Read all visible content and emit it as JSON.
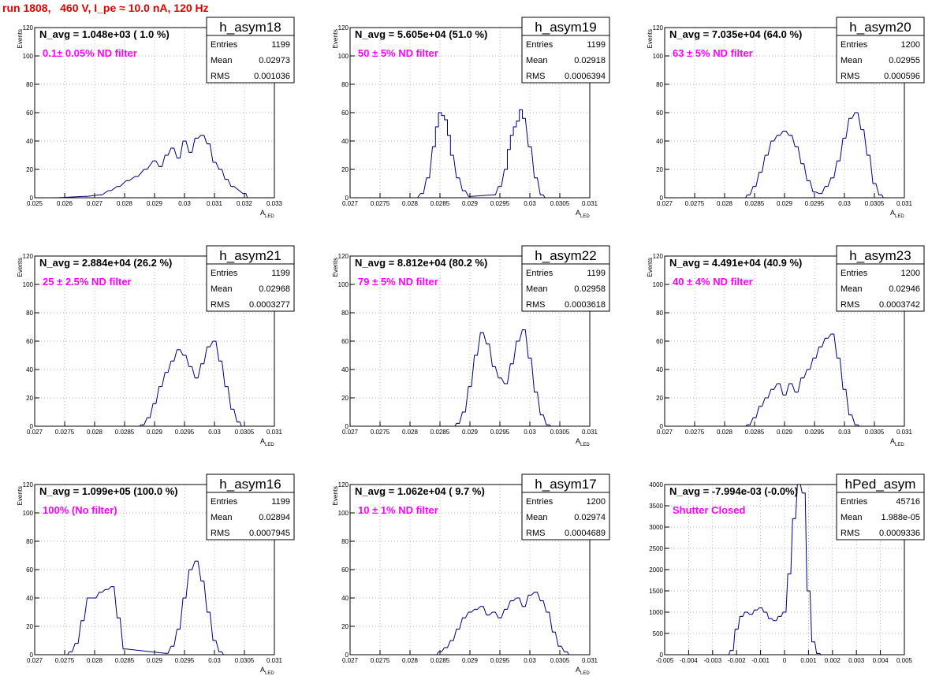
{
  "run_title": "run 1808,   460 V, I_pe ≈ 10.0 nA, 120 Hz",
  "colors": {
    "hist": "#000080",
    "title_red": "#e00000",
    "filter_text": "#ff00ff",
    "grid": "#999999"
  },
  "chart_data": [
    {
      "type": "histogram",
      "name": "h_asym18",
      "navg": "N_avg = 1.048e+03 ( 1.0 %)",
      "filter": "0.1± 0.05% ND filter",
      "stats": [
        [
          "Entries",
          "1199"
        ],
        [
          "Mean",
          "0.02973"
        ],
        [
          "RMS",
          "0.001036"
        ]
      ],
      "ylabel": "Events",
      "xlabel": "A",
      "xlabel_sub": "LED",
      "xlim": [
        0.025,
        0.033
      ],
      "ylim": [
        0,
        120
      ],
      "xticks": [
        0.025,
        0.026,
        0.027,
        0.028,
        0.029,
        0.03,
        0.031,
        0.032,
        0.033
      ],
      "xtick_labels": [
        "0.025",
        "0.026",
        "0.027",
        "0.028",
        "0.029",
        "0.03",
        "0.031",
        "0.032",
        "0.033"
      ],
      "yticks": [
        0,
        20,
        40,
        60,
        80,
        100,
        120
      ],
      "ytick_labels": [
        "0",
        "20",
        "40",
        "60",
        "80",
        "100",
        "120"
      ],
      "x": [
        0.0257,
        0.0267,
        0.0272,
        0.0275,
        0.0278,
        0.0281,
        0.0284,
        0.0287,
        0.029,
        0.0292,
        0.0294,
        0.0296,
        0.0298,
        0.03,
        0.0302,
        0.0304,
        0.0306,
        0.0308,
        0.031,
        0.0312,
        0.0314,
        0.0316,
        0.032
      ],
      "values": [
        0,
        1,
        2,
        5,
        8,
        12,
        15,
        20,
        26,
        22,
        30,
        35,
        28,
        40,
        32,
        42,
        44,
        38,
        25,
        20,
        13,
        8,
        3
      ]
    },
    {
      "type": "histogram",
      "name": "h_asym19",
      "navg": "N_avg = 5.605e+04 (51.0 %)",
      "filter": "50 ± 5% ND filter",
      "stats": [
        [
          "Entries",
          "1199"
        ],
        [
          "Mean",
          "0.02918"
        ],
        [
          "RMS",
          "0.0006394"
        ]
      ],
      "ylabel": "Events",
      "xlabel": "A",
      "xlabel_sub": "LED",
      "xlim": [
        0.027,
        0.031
      ],
      "ylim": [
        0,
        120
      ],
      "xticks": [
        0.027,
        0.0275,
        0.028,
        0.0285,
        0.029,
        0.0295,
        0.03,
        0.0305,
        0.031
      ],
      "xtick_labels": [
        "0.027",
        "0.0275",
        "0.028",
        "0.0285",
        "0.029",
        "0.0295",
        "0.03",
        "0.0305",
        "0.031"
      ],
      "yticks": [
        0,
        20,
        40,
        60,
        80,
        100,
        120
      ],
      "ytick_labels": [
        "0",
        "20",
        "40",
        "60",
        "80",
        "100",
        "120"
      ],
      "x": [
        0.0281,
        0.0282,
        0.0283,
        0.0284,
        0.02845,
        0.0285,
        0.02855,
        0.0286,
        0.02865,
        0.0287,
        0.0288,
        0.0289,
        0.029,
        0.0294,
        0.0295,
        0.0296,
        0.02965,
        0.0297,
        0.02975,
        0.0298,
        0.02985,
        0.0299,
        0.03,
        0.0301,
        0.0302
      ],
      "values": [
        0,
        3,
        14,
        36,
        50,
        60,
        58,
        55,
        44,
        30,
        14,
        5,
        1,
        2,
        8,
        20,
        34,
        44,
        50,
        54,
        62,
        56,
        36,
        14,
        2
      ]
    },
    {
      "type": "histogram",
      "name": "h_asym20",
      "navg": "N_avg = 7.035e+04 (64.0 %)",
      "filter": "63 ± 5% ND filter",
      "stats": [
        [
          "Entries",
          "1200"
        ],
        [
          "Mean",
          "0.02955"
        ],
        [
          "RMS",
          "0.000596"
        ]
      ],
      "ylabel": "Events",
      "xlabel": "A",
      "xlabel_sub": "LED",
      "xlim": [
        0.027,
        0.031
      ],
      "ylim": [
        0,
        120
      ],
      "xticks": [
        0.027,
        0.0275,
        0.028,
        0.0285,
        0.029,
        0.0295,
        0.03,
        0.0305,
        0.031
      ],
      "xtick_labels": [
        "0.027",
        "0.0275",
        "0.028",
        "0.0285",
        "0.029",
        "0.0295",
        "0.03",
        "0.0305",
        "0.031"
      ],
      "yticks": [
        0,
        20,
        40,
        60,
        80,
        100,
        120
      ],
      "ytick_labels": [
        "0",
        "20",
        "40",
        "60",
        "80",
        "100",
        "120"
      ],
      "x": [
        0.0284,
        0.0285,
        0.0286,
        0.0287,
        0.0288,
        0.0289,
        0.029,
        0.0291,
        0.0292,
        0.0293,
        0.0294,
        0.0295,
        0.0296,
        0.0297,
        0.0298,
        0.0299,
        0.03,
        0.0301,
        0.0302,
        0.0303,
        0.0304,
        0.0305,
        0.0306
      ],
      "values": [
        2,
        8,
        18,
        30,
        40,
        44,
        47,
        44,
        36,
        24,
        12,
        4,
        3,
        8,
        14,
        26,
        42,
        56,
        60,
        48,
        30,
        10,
        2
      ]
    },
    {
      "type": "histogram",
      "name": "h_asym21",
      "navg": "N_avg = 2.884e+04 (26.2 %)",
      "filter": "25 ± 2.5% ND filter",
      "stats": [
        [
          "Entries",
          "1199"
        ],
        [
          "Mean",
          "0.02968"
        ],
        [
          "RMS",
          "0.0003277"
        ]
      ],
      "ylabel": "Events",
      "xlabel": "A",
      "xlabel_sub": "LED",
      "xlim": [
        0.027,
        0.031
      ],
      "ylim": [
        0,
        120
      ],
      "xticks": [
        0.027,
        0.0275,
        0.028,
        0.0285,
        0.029,
        0.0295,
        0.03,
        0.0305,
        0.031
      ],
      "xtick_labels": [
        "0.027",
        "0.0275",
        "0.028",
        "0.0285",
        "0.029",
        "0.0295",
        "0.03",
        "0.0305",
        "0.031"
      ],
      "yticks": [
        0,
        20,
        40,
        60,
        80,
        100,
        120
      ],
      "ytick_labels": [
        "0",
        "20",
        "40",
        "60",
        "80",
        "100",
        "120"
      ],
      "x": [
        0.0288,
        0.0289,
        0.029,
        0.0291,
        0.0292,
        0.0293,
        0.0294,
        0.0295,
        0.0296,
        0.0297,
        0.0298,
        0.0299,
        0.03,
        0.0301,
        0.0302,
        0.0303,
        0.0304
      ],
      "values": [
        1,
        6,
        16,
        28,
        38,
        46,
        54,
        50,
        42,
        34,
        44,
        56,
        60,
        46,
        28,
        12,
        3
      ]
    },
    {
      "type": "histogram",
      "name": "h_asym22",
      "navg": "N_avg = 8.812e+04 (80.2 %)",
      "filter": "79 ± 5% ND filter",
      "stats": [
        [
          "Entries",
          "1199"
        ],
        [
          "Mean",
          "0.02958"
        ],
        [
          "RMS",
          "0.0003618"
        ]
      ],
      "ylabel": "Events",
      "xlabel": "A",
      "xlabel_sub": "LED",
      "xlim": [
        0.027,
        0.031
      ],
      "ylim": [
        0,
        120
      ],
      "xticks": [
        0.027,
        0.0275,
        0.028,
        0.0285,
        0.029,
        0.0295,
        0.03,
        0.0305,
        0.031
      ],
      "xtick_labels": [
        "0.027",
        "0.0275",
        "0.028",
        "0.0285",
        "0.029",
        "0.0295",
        "0.03",
        "0.0305",
        "0.031"
      ],
      "yticks": [
        0,
        20,
        40,
        60,
        80,
        100,
        120
      ],
      "ytick_labels": [
        "0",
        "20",
        "40",
        "60",
        "80",
        "100",
        "120"
      ],
      "x": [
        0.0288,
        0.0289,
        0.029,
        0.0291,
        0.0292,
        0.0293,
        0.0294,
        0.0295,
        0.0296,
        0.0297,
        0.0298,
        0.0299,
        0.03,
        0.0301,
        0.0302,
        0.0303
      ],
      "values": [
        2,
        10,
        28,
        50,
        66,
        58,
        42,
        34,
        30,
        44,
        60,
        68,
        48,
        24,
        8,
        1
      ]
    },
    {
      "type": "histogram",
      "name": "h_asym23",
      "navg": "N_avg = 4.491e+04 (40.9 %)",
      "filter": "40 ± 4% ND filter",
      "stats": [
        [
          "Entries",
          "1200"
        ],
        [
          "Mean",
          "0.02946"
        ],
        [
          "RMS",
          "0.0003742"
        ]
      ],
      "ylabel": "Events",
      "xlabel": "A",
      "xlabel_sub": "LED",
      "xlim": [
        0.027,
        0.031
      ],
      "ylim": [
        0,
        120
      ],
      "xticks": [
        0.027,
        0.0275,
        0.028,
        0.0285,
        0.029,
        0.0295,
        0.03,
        0.0305,
        0.031
      ],
      "xtick_labels": [
        "0.027",
        "0.0275",
        "0.028",
        "0.0285",
        "0.029",
        "0.0295",
        "0.03",
        "0.0305",
        "0.031"
      ],
      "yticks": [
        0,
        20,
        40,
        60,
        80,
        100,
        120
      ],
      "ytick_labels": [
        "0",
        "20",
        "40",
        "60",
        "80",
        "100",
        "120"
      ],
      "x": [
        0.0284,
        0.0285,
        0.0286,
        0.0287,
        0.0288,
        0.0289,
        0.029,
        0.0291,
        0.0292,
        0.0293,
        0.0294,
        0.0295,
        0.0296,
        0.0297,
        0.0298,
        0.0299,
        0.03,
        0.0301,
        0.0302
      ],
      "values": [
        1,
        6,
        14,
        20,
        26,
        30,
        22,
        30,
        24,
        34,
        40,
        48,
        56,
        62,
        65,
        48,
        26,
        8,
        1
      ]
    },
    {
      "type": "histogram",
      "name": "h_asym16",
      "navg": "N_avg = 1.099e+05 (100.0 %)",
      "filter": "100% (No filter)",
      "stats": [
        [
          "Entries",
          "1199"
        ],
        [
          "Mean",
          "0.02894"
        ],
        [
          "RMS",
          "0.0007945"
        ]
      ],
      "ylabel": "Events",
      "xlabel": "A",
      "xlabel_sub": "LED",
      "xlim": [
        0.027,
        0.031
      ],
      "ylim": [
        0,
        120
      ],
      "xticks": [
        0.027,
        0.0275,
        0.028,
        0.0285,
        0.029,
        0.0295,
        0.03,
        0.0305,
        0.031
      ],
      "xtick_labels": [
        "0.027",
        "0.0275",
        "0.028",
        "0.0285",
        "0.029",
        "0.0295",
        "0.03",
        "0.0305",
        "0.031"
      ],
      "yticks": [
        0,
        20,
        40,
        60,
        80,
        100,
        120
      ],
      "ytick_labels": [
        "0",
        "20",
        "40",
        "60",
        "80",
        "100",
        "120"
      ],
      "x": [
        0.0276,
        0.0277,
        0.0278,
        0.0279,
        0.028,
        0.0281,
        0.0282,
        0.0283,
        0.0284,
        0.0285,
        0.0292,
        0.0293,
        0.0294,
        0.0295,
        0.0296,
        0.0297,
        0.0298,
        0.0299,
        0.03,
        0.0301
      ],
      "values": [
        2,
        8,
        24,
        40,
        40,
        44,
        46,
        48,
        26,
        4,
        1,
        6,
        18,
        40,
        60,
        66,
        52,
        30,
        10,
        2
      ]
    },
    {
      "type": "histogram",
      "name": "h_asym17",
      "navg": "N_avg = 1.062e+04 ( 9.7 %)",
      "filter": "10 ± 1% ND filter",
      "stats": [
        [
          "Entries",
          "1200"
        ],
        [
          "Mean",
          "0.02974"
        ],
        [
          "RMS",
          "0.0004689"
        ]
      ],
      "ylabel": "Events",
      "xlabel": "A",
      "xlabel_sub": "LED",
      "xlim": [
        0.027,
        0.031
      ],
      "ylim": [
        0,
        120
      ],
      "xticks": [
        0.027,
        0.0275,
        0.028,
        0.0285,
        0.029,
        0.0295,
        0.03,
        0.0305,
        0.031
      ],
      "xtick_labels": [
        "0.027",
        "0.0275",
        "0.028",
        "0.0285",
        "0.029",
        "0.0295",
        "0.03",
        "0.0305",
        "0.031"
      ],
      "yticks": [
        0,
        20,
        40,
        60,
        80,
        100,
        120
      ],
      "ytick_labels": [
        "0",
        "20",
        "40",
        "60",
        "80",
        "100",
        "120"
      ],
      "x": [
        0.0285,
        0.0286,
        0.0287,
        0.0288,
        0.0289,
        0.029,
        0.0291,
        0.0292,
        0.0293,
        0.0294,
        0.0295,
        0.0296,
        0.0297,
        0.0298,
        0.0299,
        0.03,
        0.0301,
        0.0302,
        0.0303,
        0.0304,
        0.0305,
        0.0306
      ],
      "values": [
        2,
        5,
        10,
        18,
        26,
        30,
        32,
        34,
        28,
        30,
        26,
        32,
        38,
        40,
        34,
        42,
        44,
        38,
        30,
        16,
        6,
        2
      ]
    },
    {
      "type": "histogram",
      "name": "hPed_asym",
      "navg": "N_avg = -7.994e-03 (-0.0%)",
      "filter": "Shutter Closed",
      "stats": [
        [
          "Entries",
          "45716"
        ],
        [
          "Mean",
          "1.988e-05"
        ],
        [
          "RMS",
          "0.0009336"
        ]
      ],
      "ylabel": "",
      "xlabel": "",
      "xlabel_sub": "",
      "xlim": [
        -0.005,
        0.005
      ],
      "ylim": [
        0,
        4000
      ],
      "xticks": [
        -0.005,
        -0.004,
        -0.003,
        -0.002,
        -0.001,
        0,
        0.001,
        0.002,
        0.003,
        0.004,
        0.005
      ],
      "xtick_labels": [
        "-0.005",
        "-0.004",
        "-0.003",
        "-0.002",
        "-0.001",
        "0",
        "0.001",
        "0.002",
        "0.003",
        "0.004",
        "0.005"
      ],
      "yticks": [
        0,
        500,
        1000,
        1500,
        2000,
        2500,
        3000,
        3500,
        4000
      ],
      "ytick_labels": [
        "0",
        "500",
        "1000",
        "1500",
        "2000",
        "2500",
        "3000",
        "3500",
        "4000"
      ],
      "x": [
        -0.0022,
        -0.002,
        -0.0018,
        -0.0016,
        -0.0014,
        -0.0012,
        -0.001,
        -0.0008,
        -0.0006,
        -0.0004,
        -0.0002,
        0,
        0.0002,
        0.0004,
        0.0006,
        0.0008,
        0.001,
        0.0012,
        0.0014
      ],
      "values": [
        100,
        600,
        900,
        1000,
        950,
        1050,
        1100,
        1000,
        850,
        800,
        900,
        1000,
        1900,
        3200,
        4000,
        3800,
        1500,
        300,
        30
      ]
    }
  ]
}
